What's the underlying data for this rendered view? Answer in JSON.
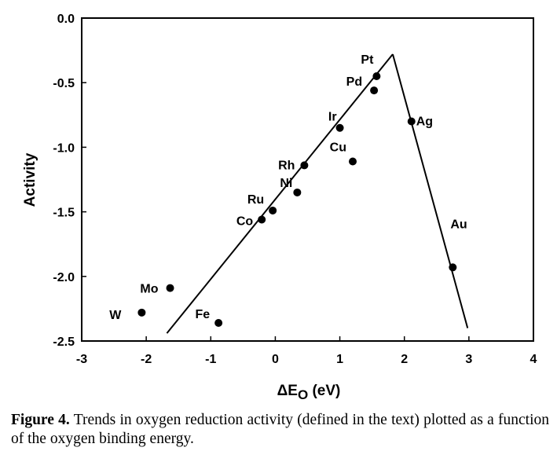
{
  "chart_data": {
    "type": "scatter",
    "xlabel_main": "ΔE",
    "xlabel_sub": "O",
    "xlabel_unit": " (eV)",
    "ylabel": "Activity",
    "xlim": [
      -3,
      4
    ],
    "ylim": [
      -2.5,
      0.0
    ],
    "xticks": [
      "-3",
      "-2",
      "-1",
      "0",
      "1",
      "2",
      "3",
      "4"
    ],
    "yticks": [
      "0.0",
      "-0.5",
      "-1.0",
      "-1.5",
      "-2.0",
      "-2.5"
    ],
    "grid": false,
    "points": [
      {
        "label": "W",
        "x": -2.07,
        "y": -2.28
      },
      {
        "label": "Mo",
        "x": -1.63,
        "y": -2.09
      },
      {
        "label": "Fe",
        "x": -0.88,
        "y": -2.36
      },
      {
        "label": "Co",
        "x": -0.21,
        "y": -1.56
      },
      {
        "label": "Ru",
        "x": -0.04,
        "y": -1.49
      },
      {
        "label": "Ni",
        "x": 0.34,
        "y": -1.35
      },
      {
        "label": "Rh",
        "x": 0.45,
        "y": -1.14
      },
      {
        "label": "Ir",
        "x": 1.0,
        "y": -0.85
      },
      {
        "label": "Cu",
        "x": 1.2,
        "y": -1.11
      },
      {
        "label": "Pd",
        "x": 1.53,
        "y": -0.56
      },
      {
        "label": "Pt",
        "x": 1.57,
        "y": -0.45
      },
      {
        "label": "Ag",
        "x": 2.11,
        "y": -0.8
      },
      {
        "label": "Au",
        "x": 2.75,
        "y": -1.93
      }
    ],
    "lines": [
      {
        "x": [
          -1.68,
          1.82
        ],
        "y": [
          -2.44,
          -0.28
        ]
      },
      {
        "x": [
          1.82,
          2.98
        ],
        "y": [
          -0.28,
          -2.4
        ]
      }
    ]
  },
  "caption": {
    "label": "Figure 4.",
    "text": "  Trends in oxygen reduction activity (defined in the text) plotted as a function of the oxygen binding energy."
  }
}
